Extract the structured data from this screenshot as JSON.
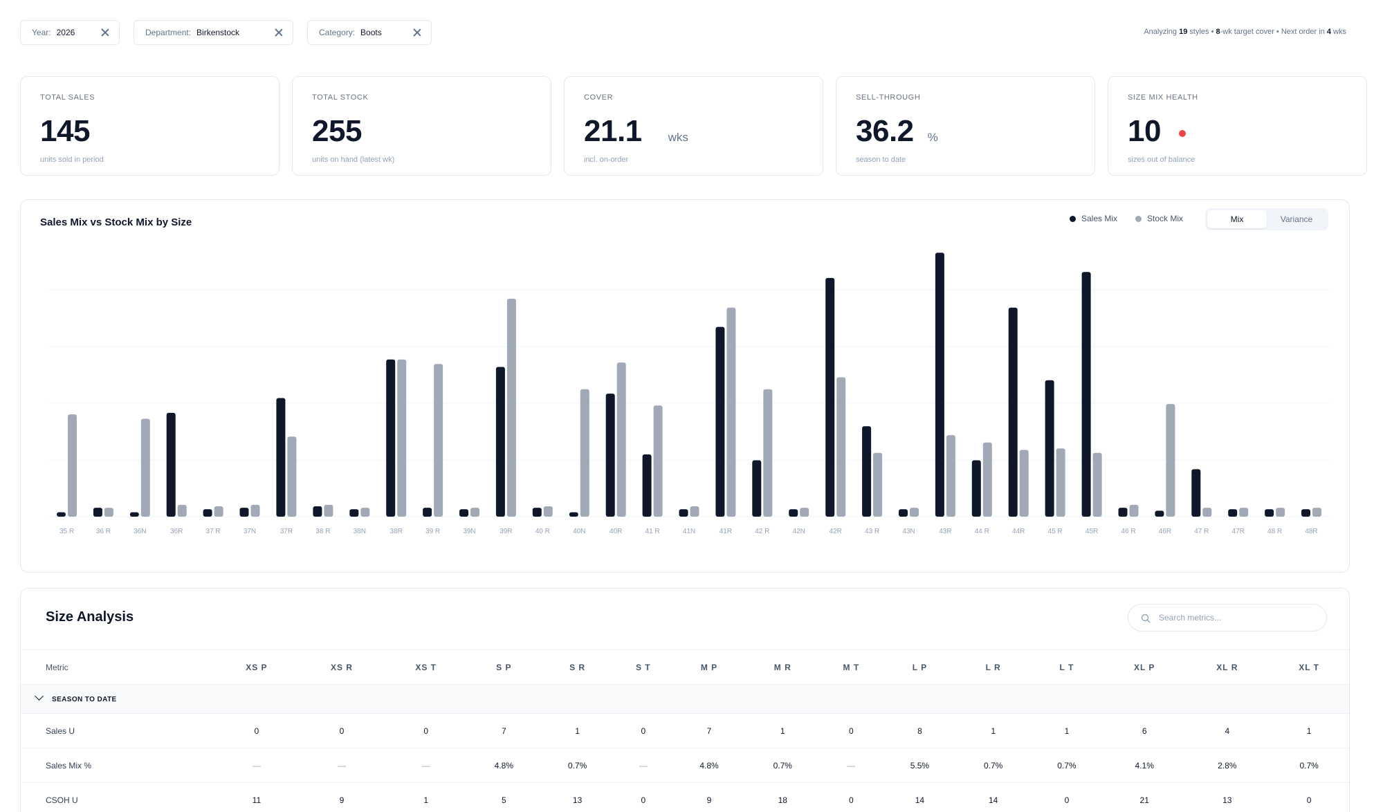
{
  "filters": [
    {
      "key": "Year:",
      "value": "2026"
    },
    {
      "key": "Department:",
      "value": "Birkenstock"
    },
    {
      "key": "Category:",
      "value": "Boots"
    }
  ],
  "summary": {
    "prefix": "Analyzing ",
    "styles": "19",
    "styles_suffix": " styles • ",
    "weeks": "8",
    "weeks_suffix": "-wk target cover • Next order in ",
    "next": "4",
    "next_suffix": " wks"
  },
  "kpis": [
    {
      "label": "TOTAL SALES",
      "value": "145",
      "unit": "",
      "sub": "units sold in period"
    },
    {
      "label": "TOTAL STOCK",
      "value": "255",
      "unit": "",
      "sub": "units on hand (latest wk)"
    },
    {
      "label": "COVER",
      "value": "21.1",
      "unit": "wks",
      "sub": "incl. on-order"
    },
    {
      "label": "SELL-THROUGH",
      "value": "36.2",
      "unit": "%",
      "sub": "season to date"
    },
    {
      "label": "SIZE MIX HEALTH",
      "value": "10",
      "unit": "",
      "sub": "sizes out of balance"
    }
  ],
  "chart": {
    "title": "Sales Mix vs Stock Mix by Size",
    "legend": [
      {
        "name": "Sales Mix",
        "color": "#0f172a"
      },
      {
        "name": "Stock Mix",
        "color": "#a1a8b6"
      }
    ],
    "toggle": [
      "Mix",
      "Variance"
    ],
    "toggle_active": "Mix"
  },
  "chart_data": {
    "type": "bar",
    "categories": [
      "35 R",
      "36 R",
      "36N",
      "36R",
      "37 R",
      "37N",
      "37R",
      "38 R",
      "38N",
      "38R",
      "39 R",
      "39N",
      "39R",
      "40 R",
      "40N",
      "40R",
      "41 R",
      "41N",
      "41R",
      "42 R",
      "42N",
      "42R",
      "43 R",
      "43N",
      "43R",
      "44 R",
      "44R",
      "45 R",
      "45R",
      "46 R",
      "46R",
      "47 R",
      "47R",
      "48 R",
      "48R"
    ],
    "series": [
      {
        "name": "Sales Mix",
        "color": "#0f172a",
        "values": [
          0.3,
          0.6,
          0.3,
          7.0,
          0.5,
          0.6,
          8.0,
          0.7,
          0.5,
          10.6,
          0.6,
          0.5,
          10.1,
          0.6,
          0.3,
          8.3,
          4.2,
          0.5,
          12.8,
          3.8,
          0.5,
          16.1,
          6.1,
          0.5,
          17.8,
          3.8,
          14.1,
          9.2,
          16.5,
          0.6,
          0.4,
          3.2,
          0.5,
          0.5,
          0.5
        ]
      },
      {
        "name": "Stock Mix",
        "color": "#a1a8b6",
        "values": [
          6.9,
          0.6,
          6.6,
          0.8,
          0.7,
          0.8,
          5.4,
          0.8,
          0.6,
          10.6,
          10.3,
          0.6,
          14.7,
          0.7,
          8.6,
          10.4,
          7.5,
          0.7,
          14.1,
          8.6,
          0.6,
          9.4,
          4.3,
          0.6,
          5.5,
          5.0,
          4.5,
          4.6,
          4.3,
          0.8,
          7.6,
          0.6,
          0.6,
          0.6,
          0.6
        ]
      }
    ],
    "ylim": [
      0,
      19.5
    ],
    "grid": true
  },
  "table": {
    "title": "Size Analysis",
    "search_placeholder": "Search metrics...",
    "metric_header": "Metric",
    "columns": [
      "XS P",
      "XS R",
      "XS T",
      "S P",
      "S R",
      "S T",
      "M P",
      "M R",
      "M T",
      "L P",
      "L R",
      "L T",
      "XL P",
      "XL R",
      "XL T"
    ],
    "group": "SEASON TO DATE",
    "rows": [
      {
        "metric": "Sales U",
        "values": [
          "0",
          "0",
          "0",
          "7",
          "1",
          "0",
          "7",
          "1",
          "0",
          "8",
          "1",
          "1",
          "6",
          "4",
          "1"
        ]
      },
      {
        "metric": "Sales Mix %",
        "values": [
          "—",
          "—",
          "—",
          "4.8%",
          "0.7%",
          "—",
          "4.8%",
          "0.7%",
          "—",
          "5.5%",
          "0.7%",
          "0.7%",
          "4.1%",
          "2.8%",
          "0.7%"
        ]
      },
      {
        "metric": "CSOH U",
        "values": [
          "11",
          "9",
          "1",
          "5",
          "13",
          "0",
          "9",
          "18",
          "0",
          "14",
          "14",
          "0",
          "21",
          "13",
          "0"
        ]
      }
    ]
  }
}
